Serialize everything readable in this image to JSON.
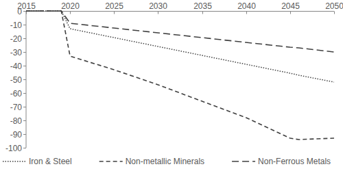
{
  "chart_data": {
    "type": "line",
    "x": [
      2015,
      2019,
      2020,
      2025,
      2030,
      2035,
      2040,
      2045,
      2046,
      2050
    ],
    "series": [
      {
        "name": "Iron & Steel",
        "color": "#404040",
        "line_style": "dotted",
        "values": [
          0,
          0,
          -13,
          -19.5,
          -26,
          -32.5,
          -39,
          -45.5,
          -47,
          -52
        ]
      },
      {
        "name": "Non-metallic Minerals",
        "color": "#404040",
        "line_style": "dashed",
        "values": [
          0,
          0,
          -33,
          -43,
          -54,
          -66,
          -78,
          -93,
          -94,
          -93
        ]
      },
      {
        "name": "Non-Ferrous Metals",
        "color": "#404040",
        "line_style": "longdash",
        "values": [
          0,
          0,
          -9,
          -12.5,
          -16,
          -19.5,
          -23,
          -26.5,
          -27,
          -30
        ]
      }
    ],
    "xlim": [
      2015,
      2050
    ],
    "xticks": [
      2015,
      2020,
      2025,
      2030,
      2035,
      2040,
      2045,
      2050
    ],
    "ylim": [
      -100,
      0
    ],
    "yticks": [
      0,
      -10,
      -20,
      -30,
      -40,
      -50,
      -60,
      -70,
      -80,
      -90,
      -100
    ],
    "grid": false,
    "legend": "bottom"
  }
}
